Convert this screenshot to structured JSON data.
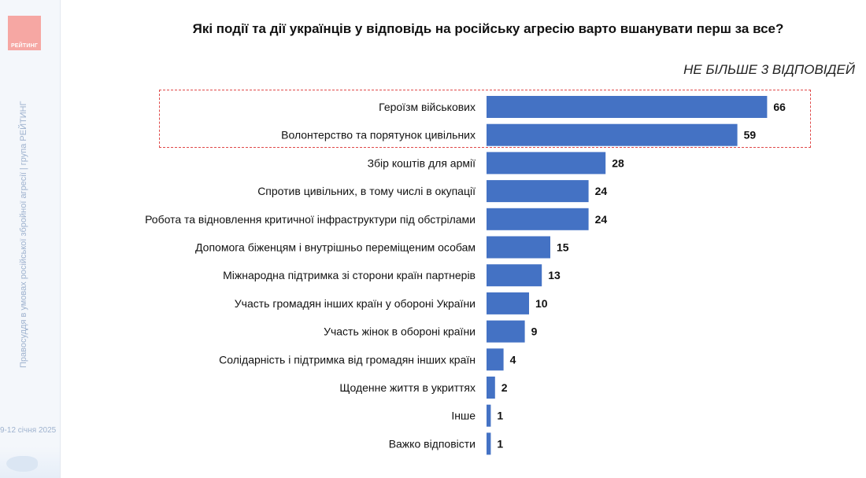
{
  "sidebar": {
    "logo_text": "РЕЙТИНГ",
    "vertical_text": "Правосуддя в умовах російської збройної агресії | група РЕЙТИНГ",
    "date_text": "9-12 січня 2025"
  },
  "header": {
    "title": "Які події та дії українців у відповідь на російську агресію варто вшанувати перш за все?",
    "subtitle": "НЕ БІЛЬШЕ 3 ВІДПОВІДЕЙ"
  },
  "colors": {
    "bar": "#4472c4",
    "highlight_border": "#e04a4a"
  },
  "chart_data": {
    "type": "bar",
    "orientation": "horizontal",
    "categories": [
      "Героїзм військових",
      "Волонтерство та порятунок цивільних",
      "Збір коштів для армії",
      "Спротив цивільних, в тому числі в окупації",
      "Робота та відновлення критичної інфраструктури під обстрілами",
      "Допомога біженцям і внутрішньо переміщеним особам",
      "Міжнародна підтримка зі сторони країн партнерів",
      "Участь громадян інших країн у обороні України",
      "Участь жінок в обороні країни",
      "Солідарність і підтримка від громадян інших країн",
      "Щоденне життя в укриттях",
      "Інше",
      "Важко відповісти"
    ],
    "values": [
      66,
      59,
      28,
      24,
      24,
      15,
      13,
      10,
      9,
      4,
      2,
      1,
      1
    ],
    "highlighted": [
      "Героїзм військових",
      "Волонтерство та порятунок цивільних"
    ],
    "title": "Які події та дії українців у відповідь на російську агресію варто вшанувати перш за все?",
    "subtitle": "НЕ БІЛЬШЕ 3 ВІДПОВІДЕЙ",
    "xlabel": "",
    "ylabel": "",
    "grid": false,
    "legend": "none"
  }
}
